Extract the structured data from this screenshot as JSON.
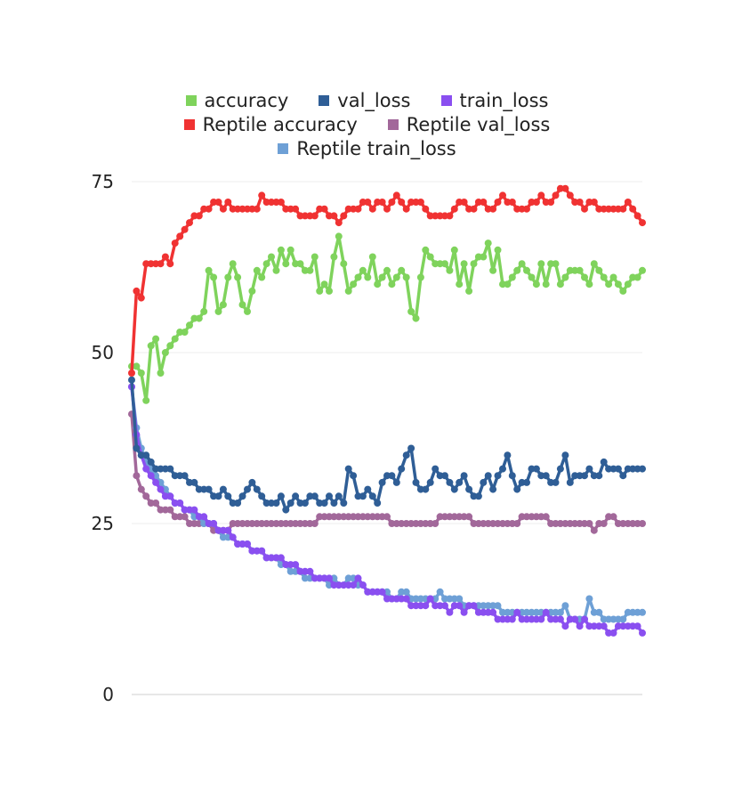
{
  "chart_data": {
    "type": "line",
    "title": "",
    "xlabel": "",
    "ylabel": "",
    "ylim": [
      0,
      75
    ],
    "yticks": [
      0,
      25,
      50,
      75
    ],
    "grid": true,
    "legend": "top",
    "series": [
      {
        "name": "accuracy",
        "color": "#7fd35c",
        "values": [
          48,
          48,
          47,
          43,
          51,
          52,
          47,
          50,
          51,
          52,
          53,
          53,
          54,
          55,
          55,
          56,
          62,
          61,
          56,
          57,
          61,
          63,
          61,
          57,
          56,
          59,
          62,
          61,
          63,
          64,
          62,
          65,
          63,
          65,
          63,
          63,
          62,
          62,
          64,
          59,
          60,
          59,
          64,
          67,
          63,
          59,
          60,
          61,
          62,
          61,
          64,
          60,
          61,
          62,
          60,
          61,
          62,
          61,
          56,
          55,
          61,
          65,
          64,
          63,
          63,
          63,
          62,
          65,
          60,
          63,
          59,
          63,
          64,
          64,
          66,
          62,
          65,
          60,
          60,
          61,
          62,
          63,
          62,
          61,
          60,
          63,
          60,
          63,
          63,
          60,
          61,
          62,
          62,
          62,
          61,
          60,
          63,
          62,
          61,
          60,
          61,
          60,
          59,
          60,
          61,
          61,
          62
        ]
      },
      {
        "name": "val_loss",
        "color": "#2f5e96",
        "values": [
          46,
          36,
          35,
          35,
          34,
          33,
          33,
          33,
          33,
          32,
          32,
          32,
          31,
          31,
          30,
          30,
          30,
          29,
          29,
          30,
          29,
          28,
          28,
          29,
          30,
          31,
          30,
          29,
          28,
          28,
          28,
          29,
          27,
          28,
          29,
          28,
          28,
          29,
          29,
          28,
          28,
          29,
          28,
          29,
          28,
          33,
          32,
          29,
          29,
          30,
          29,
          28,
          31,
          32,
          32,
          31,
          33,
          35,
          36,
          31,
          30,
          30,
          31,
          33,
          32,
          32,
          31,
          30,
          31,
          32,
          30,
          29,
          29,
          31,
          32,
          30,
          32,
          33,
          35,
          32,
          30,
          31,
          31,
          33,
          33,
          32,
          32,
          31,
          31,
          33,
          35,
          31,
          32,
          32,
          32,
          33,
          32,
          32,
          34,
          33,
          33,
          33,
          32,
          33,
          33,
          33,
          33
        ]
      },
      {
        "name": "train_loss",
        "color": "#8a4ff0",
        "values": [
          45,
          38,
          35,
          33,
          32,
          31,
          30,
          29,
          29,
          28,
          28,
          27,
          27,
          27,
          26,
          26,
          25,
          25,
          24,
          24,
          24,
          23,
          22,
          22,
          22,
          21,
          21,
          21,
          20,
          20,
          20,
          20,
          19,
          19,
          19,
          18,
          18,
          18,
          17,
          17,
          17,
          17,
          16,
          16,
          16,
          16,
          16,
          17,
          16,
          15,
          15,
          15,
          15,
          14,
          14,
          14,
          14,
          14,
          13,
          13,
          13,
          13,
          14,
          13,
          13,
          13,
          12,
          13,
          13,
          12,
          13,
          13,
          12,
          12,
          12,
          12,
          11,
          11,
          11,
          11,
          12,
          11,
          11,
          11,
          11,
          11,
          12,
          11,
          11,
          11,
          10,
          11,
          11,
          10,
          11,
          10,
          10,
          10,
          10,
          9,
          9,
          10,
          10,
          10,
          10,
          10,
          9
        ]
      },
      {
        "name": "Reptile accuracy",
        "color": "#f03232",
        "values": [
          47,
          59,
          58,
          63,
          63,
          63,
          63,
          64,
          63,
          66,
          67,
          68,
          69,
          70,
          70,
          71,
          71,
          72,
          72,
          71,
          72,
          71,
          71,
          71,
          71,
          71,
          71,
          73,
          72,
          72,
          72,
          72,
          71,
          71,
          71,
          70,
          70,
          70,
          70,
          71,
          71,
          70,
          70,
          69,
          70,
          71,
          71,
          71,
          72,
          72,
          71,
          72,
          72,
          71,
          72,
          73,
          72,
          71,
          72,
          72,
          72,
          71,
          70,
          70,
          70,
          70,
          70,
          71,
          72,
          72,
          71,
          71,
          72,
          72,
          71,
          71,
          72,
          73,
          72,
          72,
          71,
          71,
          71,
          72,
          72,
          73,
          72,
          72,
          73,
          74,
          74,
          73,
          72,
          72,
          71,
          72,
          72,
          71,
          71,
          71,
          71,
          71,
          71,
          72,
          71,
          70,
          69
        ]
      },
      {
        "name": "Reptile val_loss",
        "color": "#a2689a",
        "values": [
          41,
          32,
          30,
          29,
          28,
          28,
          27,
          27,
          27,
          26,
          26,
          26,
          25,
          25,
          25,
          25,
          25,
          24,
          24,
          24,
          24,
          25,
          25,
          25,
          25,
          25,
          25,
          25,
          25,
          25,
          25,
          25,
          25,
          25,
          25,
          25,
          25,
          25,
          25,
          26,
          26,
          26,
          26,
          26,
          26,
          26,
          26,
          26,
          26,
          26,
          26,
          26,
          26,
          26,
          25,
          25,
          25,
          25,
          25,
          25,
          25,
          25,
          25,
          25,
          26,
          26,
          26,
          26,
          26,
          26,
          26,
          25,
          25,
          25,
          25,
          25,
          25,
          25,
          25,
          25,
          25,
          26,
          26,
          26,
          26,
          26,
          26,
          25,
          25,
          25,
          25,
          25,
          25,
          25,
          25,
          25,
          24,
          25,
          25,
          26,
          26,
          25,
          25,
          25,
          25,
          25,
          25
        ]
      },
      {
        "name": "Reptile train_loss",
        "color": "#6ea0d6",
        "values": [
          45,
          39,
          36,
          34,
          33,
          32,
          31,
          30,
          29,
          28,
          28,
          27,
          27,
          26,
          26,
          25,
          25,
          25,
          24,
          23,
          23,
          23,
          22,
          22,
          22,
          21,
          21,
          21,
          20,
          20,
          20,
          19,
          19,
          18,
          18,
          18,
          17,
          17,
          17,
          17,
          17,
          16,
          17,
          16,
          16,
          17,
          17,
          16,
          16,
          15,
          15,
          15,
          15,
          15,
          14,
          14,
          15,
          15,
          14,
          14,
          14,
          14,
          14,
          14,
          15,
          14,
          14,
          14,
          14,
          13,
          13,
          13,
          13,
          13,
          13,
          13,
          13,
          12,
          12,
          12,
          12,
          12,
          12,
          12,
          12,
          12,
          12,
          12,
          12,
          12,
          13,
          11,
          11,
          11,
          11,
          14,
          12,
          12,
          11,
          11,
          11,
          11,
          11,
          12,
          12,
          12,
          12
        ]
      }
    ]
  }
}
